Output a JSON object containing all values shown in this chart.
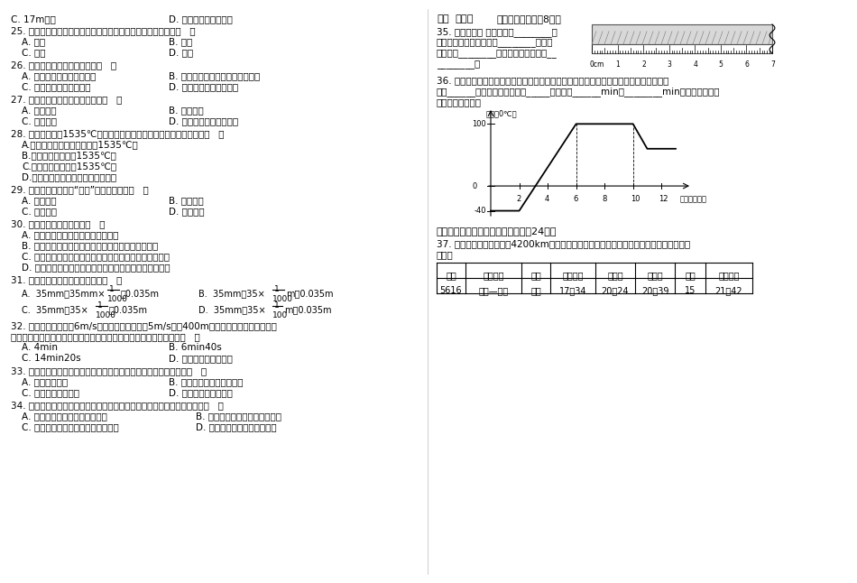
{
  "bg_color": "#ffffff",
  "table_headers": [
    "车次",
    "运行时间",
    "车种",
    "始发时间",
    "本站到",
    "本站开",
    "站停",
    "终到时间"
  ],
  "table_row": [
    "5616",
    "贵阳—桐棓",
    "普快",
    "17：34",
    "20：24",
    "20：39",
    "15",
    "21：42"
  ],
  "graph_data_x": [
    0,
    2,
    6,
    8,
    10,
    11,
    13
  ],
  "graph_data_y": [
    -40,
    -40,
    100,
    100,
    100,
    60,
    60
  ]
}
